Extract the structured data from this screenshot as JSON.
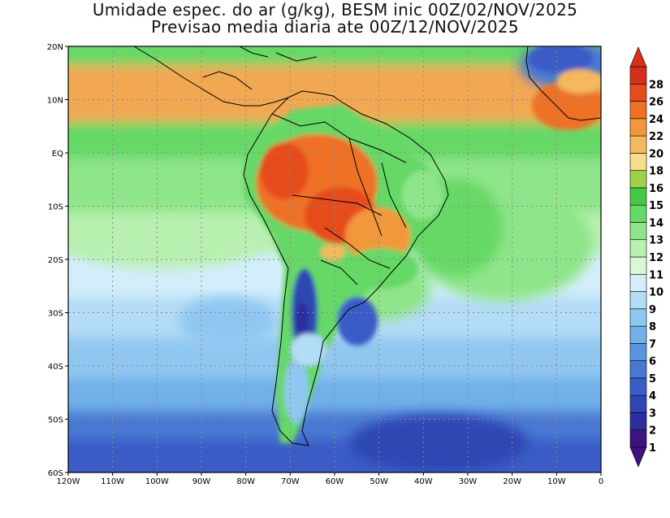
{
  "title": {
    "line1": "Umidade espec. do ar (g/kg), BESM inic 00Z/02/NOV/2025",
    "line2": "Previsao media diaria ate 00Z/12/NOV/2025"
  },
  "axes": {
    "lat_labels": [
      "20N",
      "10N",
      "EQ",
      "10S",
      "20S",
      "30S",
      "40S",
      "50S",
      "60S"
    ],
    "lat_values": [
      20,
      10,
      0,
      -10,
      -20,
      -30,
      -40,
      -50,
      -60
    ],
    "lon_labels": [
      "120W",
      "110W",
      "100W",
      "90W",
      "80W",
      "70W",
      "60W",
      "50W",
      "40W",
      "30W",
      "20W",
      "10W",
      "0"
    ],
    "lon_values": [
      -120,
      -110,
      -100,
      -90,
      -80,
      -70,
      -60,
      -50,
      -40,
      -30,
      -20,
      -10,
      0
    ],
    "lat_range": [
      -60,
      20
    ],
    "lon_range": [
      -120,
      0
    ]
  },
  "colorbar": {
    "labels": [
      "1",
      "2",
      "3",
      "4",
      "5",
      "6",
      "7",
      "8",
      "9",
      "10",
      "11",
      "12",
      "13",
      "14",
      "15",
      "16",
      "18",
      "20",
      "22",
      "24",
      "26",
      "28"
    ],
    "colors": [
      "#3d1380",
      "#2b2f9e",
      "#2f47b3",
      "#3a5cc6",
      "#4878d3",
      "#5a96df",
      "#71b0e9",
      "#90c7f1",
      "#b3dcf6",
      "#d3eefb",
      "#ddf7d6",
      "#b8f0b0",
      "#8fe58a",
      "#66d866",
      "#46c846",
      "#9fd04a",
      "#f6df88",
      "#f4b85e",
      "#f2973b",
      "#ee7127",
      "#e64b1e",
      "#d6301d"
    ]
  },
  "colors": {
    "ocean_tropical": "#f2a853",
    "ocean_midlat": "#8fe58a",
    "ocean_south": "#90c7f1",
    "amazon": "#ee7127",
    "andes": "#3a5cc6"
  }
}
